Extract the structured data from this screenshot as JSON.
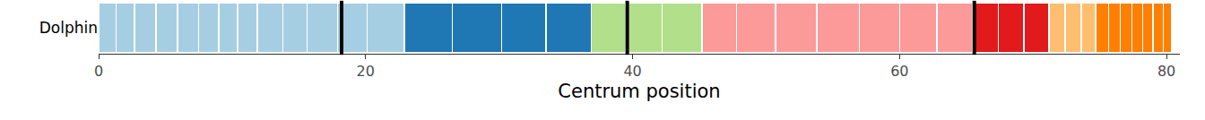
{
  "chart_data": {
    "type": "bar",
    "orientation": "horizontal",
    "stacked": true,
    "categories": [
      "Dolphin"
    ],
    "x_label": "Centrum position",
    "xlim": [
      0,
      81
    ],
    "xticks": [
      0,
      20,
      40,
      60,
      80
    ],
    "grid": false,
    "boundaries": [
      18.2,
      39.6,
      65.6
    ],
    "series": [
      {
        "color": "#a6cee3",
        "values": [
          1.3
        ]
      },
      {
        "color": "#a6cee3",
        "values": [
          1.4
        ]
      },
      {
        "color": "#a6cee3",
        "values": [
          1.6
        ]
      },
      {
        "color": "#a6cee3",
        "values": [
          1.6
        ]
      },
      {
        "color": "#a6cee3",
        "values": [
          1.6
        ]
      },
      {
        "color": "#a6cee3",
        "values": [
          1.5
        ]
      },
      {
        "color": "#a6cee3",
        "values": [
          1.4
        ]
      },
      {
        "color": "#a6cee3",
        "values": [
          1.5
        ]
      },
      {
        "color": "#a6cee3",
        "values": [
          1.9
        ]
      },
      {
        "color": "#a6cee3",
        "values": [
          1.8
        ]
      },
      {
        "color": "#a6cee3",
        "values": [
          2.3
        ]
      },
      {
        "color": "#a6cee3",
        "values": [
          2.2
        ]
      },
      {
        "color": "#a6cee3",
        "values": [
          2.8
        ]
      },
      {
        "color": "#1f78b4",
        "values": [
          3.6
        ]
      },
      {
        "color": "#1f78b4",
        "values": [
          3.7
        ]
      },
      {
        "color": "#1f78b4",
        "values": [
          3.3
        ]
      },
      {
        "color": "#1f78b4",
        "values": [
          3.4
        ]
      },
      {
        "color": "#b2df8a",
        "values": [
          2.6
        ]
      },
      {
        "color": "#b2df8a",
        "values": [
          2.7
        ]
      },
      {
        "color": "#b2df8a",
        "values": [
          3.0
        ]
      },
      {
        "color": "#fb9a99",
        "values": [
          2.6
        ]
      },
      {
        "color": "#fb9a99",
        "values": [
          2.9
        ]
      },
      {
        "color": "#fb9a99",
        "values": [
          3.1
        ]
      },
      {
        "color": "#fb9a99",
        "values": [
          3.2
        ]
      },
      {
        "color": "#fb9a99",
        "values": [
          3.0
        ]
      },
      {
        "color": "#fb9a99",
        "values": [
          2.8
        ]
      },
      {
        "color": "#fb9a99",
        "values": [
          2.7
        ]
      },
      {
        "color": "#e31a1c",
        "values": [
          1.9
        ]
      },
      {
        "color": "#e31a1c",
        "values": [
          1.9
        ]
      },
      {
        "color": "#e31a1c",
        "values": [
          1.9
        ]
      },
      {
        "color": "#fdbf6f",
        "values": [
          1.2
        ]
      },
      {
        "color": "#fdbf6f",
        "values": [
          1.2
        ]
      },
      {
        "color": "#fdbf6f",
        "values": [
          1.1
        ]
      },
      {
        "color": "#ff7f00",
        "values": [
          0.95
        ]
      },
      {
        "color": "#ff7f00",
        "values": [
          0.9
        ]
      },
      {
        "color": "#ff7f00",
        "values": [
          0.85
        ]
      },
      {
        "color": "#ff7f00",
        "values": [
          0.8
        ]
      },
      {
        "color": "#ff7f00",
        "values": [
          0.8
        ]
      },
      {
        "color": "#ff7f00",
        "values": [
          0.75
        ]
      },
      {
        "color": "#ff7f00",
        "values": [
          0.65
        ]
      }
    ]
  }
}
